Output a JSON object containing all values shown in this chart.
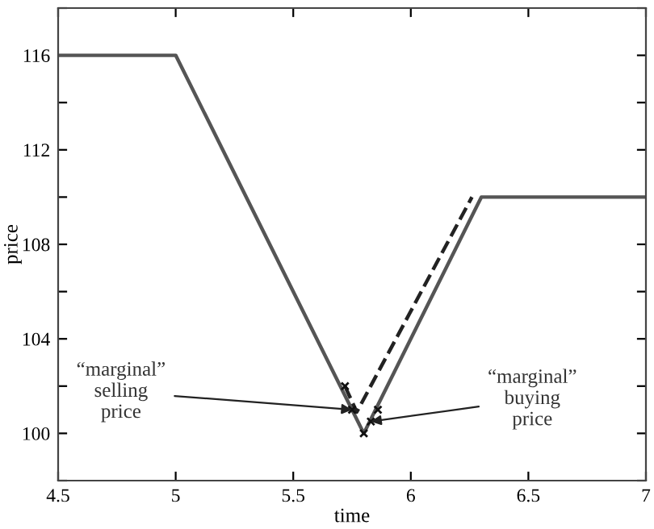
{
  "chart_data": {
    "type": "line",
    "xlabel": "time",
    "ylabel": "price",
    "xlim": [
      4.5,
      7
    ],
    "xticks": [
      4.5,
      5,
      5.5,
      6,
      6.5,
      7
    ],
    "ylim": [
      98,
      118
    ],
    "yticks": [
      {
        "value": 98,
        "label": null
      },
      100,
      {
        "value": 102,
        "label": null
      },
      104,
      {
        "value": 106,
        "label": null
      },
      108,
      {
        "value": 110,
        "label": null
      },
      112,
      {
        "value": 114,
        "label": null
      },
      116,
      {
        "value": 118,
        "label": null
      }
    ],
    "grid": false,
    "legend": false,
    "series": [
      {
        "color": "#555555",
        "line_style": "solid",
        "x": [
          4.5,
          5,
          5.8,
          6.3,
          7
        ],
        "values": [
          116,
          116,
          100,
          110,
          110
        ]
      },
      {
        "color": "#222222",
        "line_style": "dashed",
        "x": [
          5.72,
          5.77,
          6.26
        ],
        "values": [
          102,
          100.9,
          110
        ]
      },
      {
        "type": "scatter",
        "color": "#111111",
        "marker": "cross",
        "x": [
          5.72,
          5.75,
          5.8,
          5.83,
          5.86
        ],
        "values": [
          102,
          101,
          100,
          100.5,
          101
        ]
      }
    ],
    "annotations": [
      {
        "text": "“marginal”\nselling\nprice",
        "x": 5.75,
        "y": 101
      },
      {
        "text": "“marginal”\nbuying\nprice",
        "x": 5.83,
        "y": 100.5
      }
    ]
  }
}
